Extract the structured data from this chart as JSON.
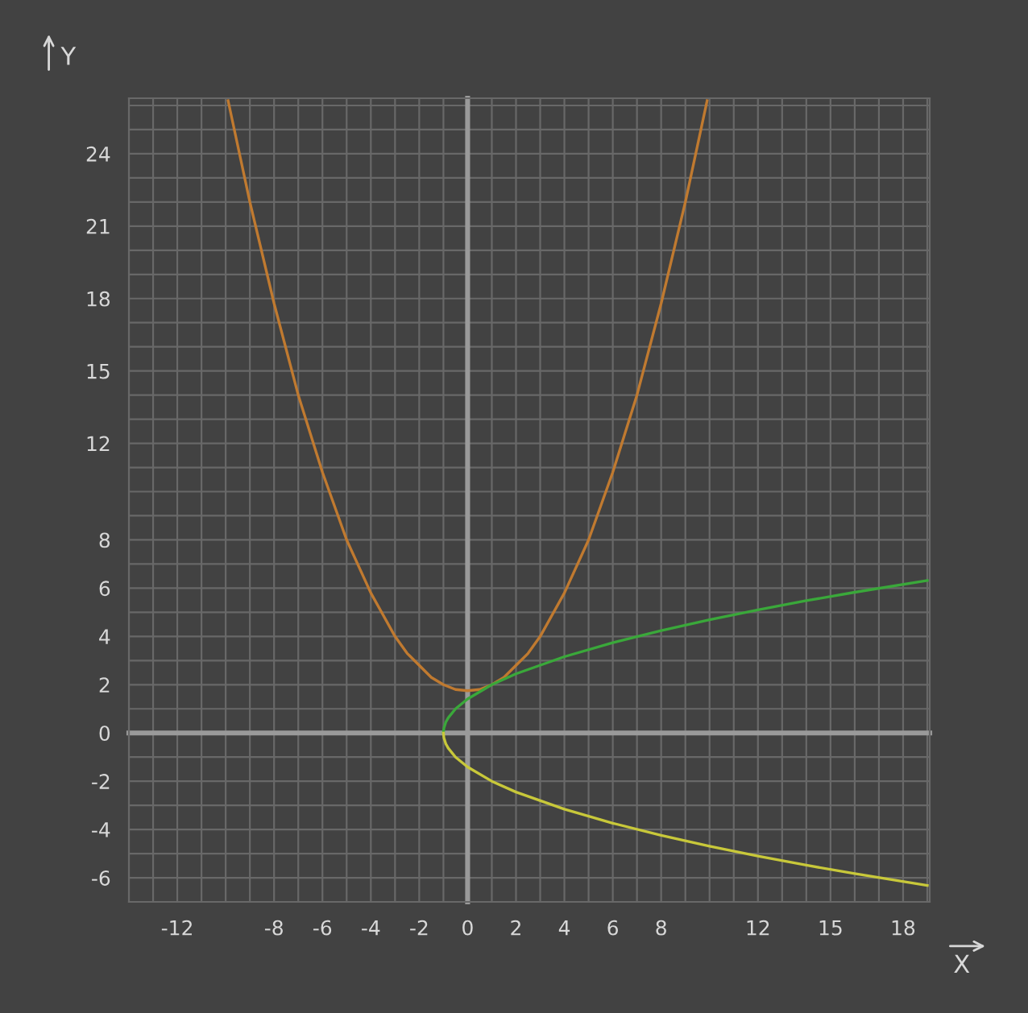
{
  "chart_data": {
    "type": "line",
    "xlabel": "X",
    "ylabel": "Y",
    "xlim": [
      -14,
      19.1
    ],
    "ylim": [
      -7,
      26.3
    ],
    "xticks": [
      {
        "value": -14,
        "label": null
      },
      {
        "value": -13,
        "label": null
      },
      -12,
      {
        "value": -11,
        "label": null
      },
      {
        "value": -10,
        "label": null
      },
      {
        "value": -9,
        "label": null
      },
      -8,
      {
        "value": -7,
        "label": null
      },
      -6,
      {
        "value": -5,
        "label": null
      },
      -4,
      {
        "value": -3,
        "label": null
      },
      -2,
      {
        "value": -1,
        "label": null
      },
      0,
      {
        "value": 1,
        "label": null
      },
      2,
      {
        "value": 3,
        "label": null
      },
      4,
      {
        "value": 5,
        "label": null
      },
      6,
      {
        "value": 7,
        "label": null
      },
      8,
      {
        "value": 9,
        "label": null
      },
      {
        "value": 10,
        "label": null
      },
      {
        "value": 11,
        "label": null
      },
      12,
      {
        "value": 13,
        "label": null
      },
      {
        "value": 14,
        "label": null
      },
      15,
      {
        "value": 16,
        "label": null
      },
      {
        "value": 17,
        "label": null
      },
      18,
      {
        "value": 19,
        "label": null
      }
    ],
    "yticks": [
      {
        "value": -7,
        "label": null
      },
      -6,
      {
        "value": -5,
        "label": null
      },
      -4,
      {
        "value": -3,
        "label": null
      },
      -2,
      {
        "value": -1,
        "label": null
      },
      0,
      {
        "value": 1,
        "label": null
      },
      2,
      {
        "value": 3,
        "label": null
      },
      4,
      {
        "value": 5,
        "label": null
      },
      6,
      {
        "value": 7,
        "label": null
      },
      8,
      {
        "value": 9,
        "label": null
      },
      {
        "value": 10,
        "label": null
      },
      {
        "value": 11,
        "label": null
      },
      12,
      {
        "value": 13,
        "label": null
      },
      {
        "value": 14,
        "label": null
      },
      15,
      {
        "value": 16,
        "label": null
      },
      {
        "value": 17,
        "label": null
      },
      18,
      {
        "value": 19,
        "label": null
      },
      {
        "value": 20,
        "label": null
      },
      21,
      {
        "value": 22,
        "label": null
      },
      {
        "value": 23,
        "label": null
      },
      24,
      {
        "value": 25,
        "label": null
      },
      {
        "value": 26,
        "label": null
      }
    ],
    "grid": true,
    "series": [
      {
        "color": "#c07a30",
        "x": [
          -9.9,
          -9,
          -8,
          -7,
          -6,
          -5,
          -4,
          -3,
          -2.5,
          -2,
          -1.5,
          -1,
          -0.5,
          0,
          0.5,
          1,
          1.5,
          2,
          2.5,
          3,
          4,
          5,
          6,
          7,
          8,
          9,
          9.9
        ],
        "values": [
          26.2,
          22.0,
          17.8,
          14.0,
          10.8,
          8.0,
          5.8,
          4.0,
          3.3,
          2.8,
          2.3,
          2.0,
          1.8,
          1.75,
          1.8,
          2.0,
          2.3,
          2.8,
          3.3,
          4.0,
          5.8,
          8.0,
          10.8,
          14.0,
          17.8,
          22.0,
          26.2
        ]
      },
      {
        "color": "#3aa83a",
        "x": [
          -1,
          -0.98,
          -0.9,
          -0.8,
          -0.5,
          0,
          1,
          2,
          4,
          6,
          8,
          10,
          12,
          14,
          16,
          19
        ],
        "values": [
          0,
          0.2,
          0.45,
          0.63,
          1.0,
          1.41,
          2.0,
          2.45,
          3.16,
          3.74,
          4.24,
          4.69,
          5.1,
          5.48,
          5.83,
          6.32
        ]
      },
      {
        "color": "#c8c83a",
        "x": [
          -1,
          -0.98,
          -0.9,
          -0.8,
          -0.5,
          0,
          1,
          2,
          4,
          6,
          8,
          10,
          12,
          14,
          16,
          19
        ],
        "values": [
          0,
          -0.2,
          -0.45,
          -0.63,
          -1.0,
          -1.41,
          -2.0,
          -2.45,
          -3.16,
          -3.74,
          -4.24,
          -4.69,
          -5.1,
          -5.48,
          -5.83,
          -6.32
        ]
      }
    ]
  }
}
